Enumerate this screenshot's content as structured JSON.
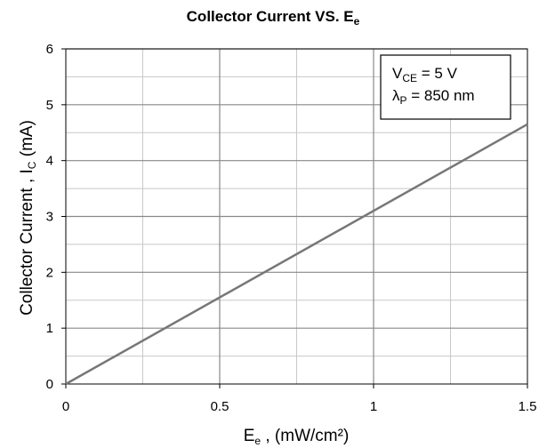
{
  "chart_data": {
    "type": "line",
    "title": {
      "main": "Collector Current VS. E",
      "sub": "e"
    },
    "xlabel": {
      "main": "E",
      "sub": "e",
      "rest": " , (mW/cm²)"
    },
    "ylabel": {
      "main": "Collector Current , I",
      "sub": "C",
      "rest": " (mA)"
    },
    "xlim": [
      0,
      1.5
    ],
    "ylim": [
      0,
      6
    ],
    "x_ticks": [
      "0",
      "0.5",
      "1",
      "1.5"
    ],
    "y_ticks": [
      "0",
      "1",
      "2",
      "3",
      "4",
      "5",
      "6"
    ],
    "grid": {
      "major_x": [
        0.5,
        1.0
      ],
      "minor_x": [
        0.25,
        0.75,
        1.25
      ],
      "major_y": [
        1,
        2,
        3,
        4,
        5,
        6
      ],
      "minor_y": [
        0.5,
        1.5,
        2.5,
        3.5,
        4.5,
        5.5
      ]
    },
    "series": [
      {
        "x": [
          0,
          1.5
        ],
        "y": [
          0,
          4.65
        ],
        "color": "#777777"
      }
    ],
    "annotation": {
      "position": "top-right",
      "lines": [
        {
          "main": "V",
          "sub": "CE",
          "rest": " = 5 V"
        },
        {
          "main": "λ",
          "sub": "P",
          "rest": " = 850 nm"
        }
      ]
    }
  }
}
